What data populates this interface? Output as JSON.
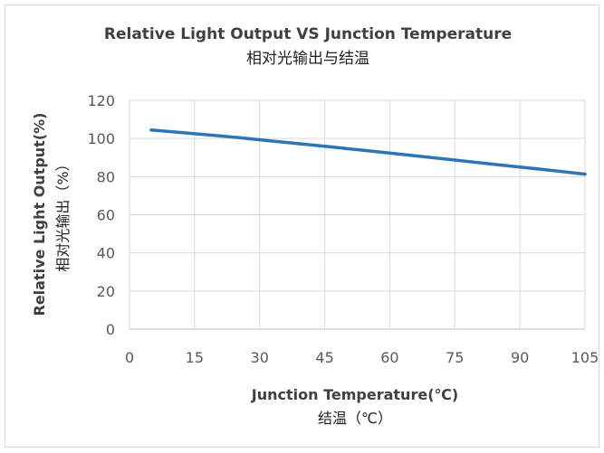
{
  "chart_data": {
    "type": "line",
    "title": "Relative Light Output VS Junction Temperature",
    "subtitle": "相对光输出与结温",
    "xlabel": "Junction Temperature(℃)",
    "xlabel_cn": "结温（℃）",
    "ylabel": "Relative Light Output(%)",
    "ylabel_cn": "相对光输出（%）",
    "xlim": [
      0,
      105
    ],
    "ylim": [
      0,
      120
    ],
    "x_ticks": [
      0,
      15,
      30,
      45,
      60,
      75,
      90,
      105
    ],
    "y_ticks": [
      0,
      20,
      40,
      60,
      80,
      100,
      120
    ],
    "grid": true,
    "series": [
      {
        "color": "#2e75b6",
        "x": [
          5,
          15,
          25,
          35,
          45,
          55,
          65,
          75,
          85,
          95,
          105
        ],
        "y": [
          104.5,
          102.5,
          100.5,
          98.2,
          95.9,
          93.6,
          91.1,
          88.7,
          86.2,
          83.8,
          81.3
        ]
      }
    ]
  }
}
